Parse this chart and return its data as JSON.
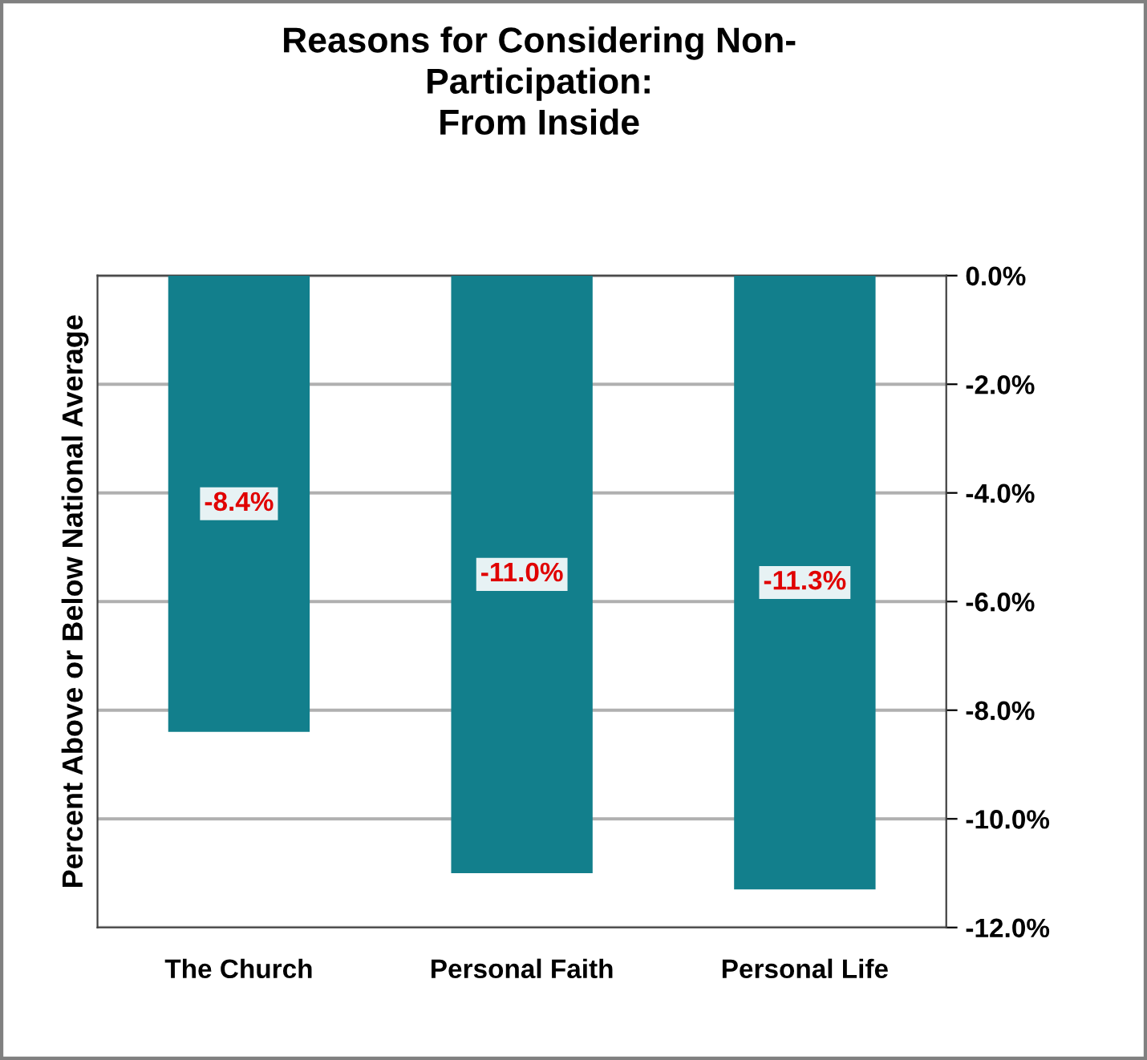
{
  "chart_data": {
    "type": "bar",
    "title": "Reasons for Considering Non-\nParticipation:\nFrom Inside",
    "ylabel": "Percent Above or Below National Average",
    "categories": [
      "The Church",
      "Personal Faith",
      "Personal Life"
    ],
    "values": [
      -8.4,
      -11.0,
      -11.3
    ],
    "value_labels": [
      "-8.4%",
      "-11.0%",
      "-11.3%"
    ],
    "color": "#127f8c",
    "ylim": [
      -12,
      0
    ],
    "yticks": [
      {
        "value": 0,
        "label": "0.0%"
      },
      {
        "value": -2,
        "label": "-2.0%"
      },
      {
        "value": -4,
        "label": "-4.0%"
      },
      {
        "value": -6,
        "label": "-6.0%"
      },
      {
        "value": -8,
        "label": "-8.0%"
      },
      {
        "value": -10,
        "label": "-10.0%"
      },
      {
        "value": -12,
        "label": "-12.0%"
      }
    ],
    "grid": "y"
  }
}
